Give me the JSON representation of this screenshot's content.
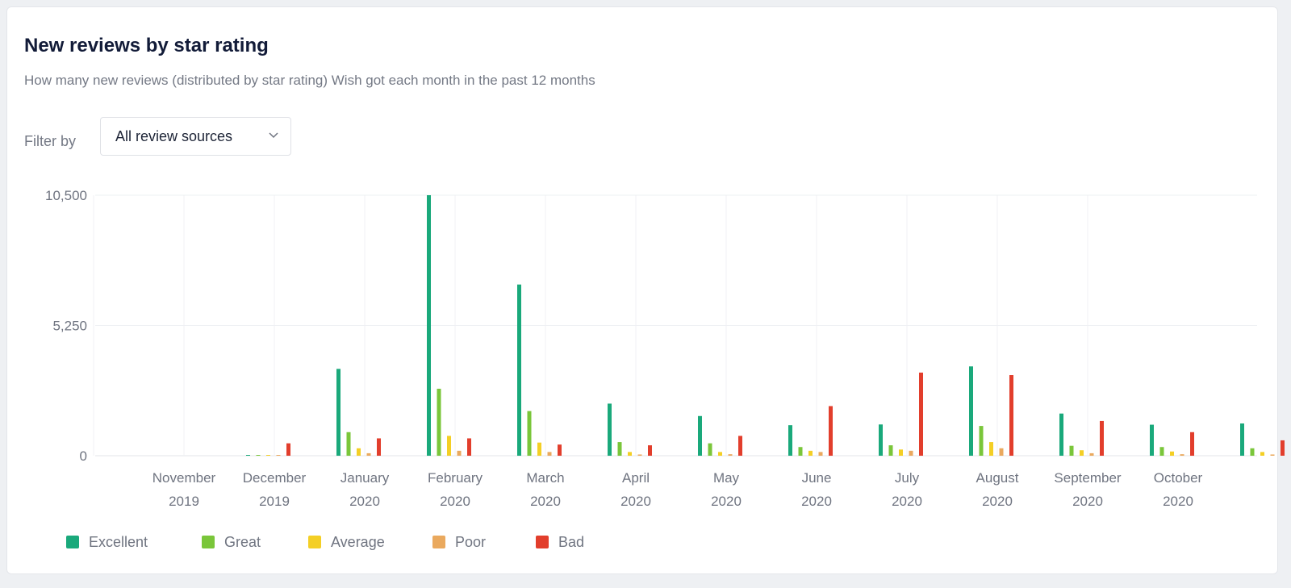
{
  "header": {
    "title": "New reviews by star rating",
    "subtitle": "How many new reviews (distributed by star rating) Wish got each month in the past 12 months"
  },
  "filter": {
    "label": "Filter by",
    "value": "All review sources",
    "chevron_icon": "chevron-down-icon"
  },
  "chart_data": {
    "type": "bar",
    "categories": [
      [
        "November",
        "2019"
      ],
      [
        "December",
        "2019"
      ],
      [
        "January",
        "2020"
      ],
      [
        "February",
        "2020"
      ],
      [
        "March",
        "2020"
      ],
      [
        "April",
        "2020"
      ],
      [
        "May",
        "2020"
      ],
      [
        "June",
        "2020"
      ],
      [
        "July",
        "2020"
      ],
      [
        "August",
        "2020"
      ],
      [
        "September",
        "2020"
      ],
      [
        "October",
        "2020"
      ]
    ],
    "yticks": [
      {
        "value": 0,
        "label": "0"
      },
      {
        "value": 5250,
        "label": "5,250"
      },
      {
        "value": 10500,
        "label": "10,500"
      }
    ],
    "ylim": [
      0,
      10500
    ],
    "grid": true,
    "legend_position": "bottom-left",
    "series": [
      {
        "name": "Excellent",
        "color": "#1aa97b",
        "values": [
          30,
          3500,
          10500,
          6900,
          2100,
          1600,
          1230,
          1260,
          3600,
          1700,
          1250,
          1300
        ]
      },
      {
        "name": "Great",
        "color": "#7ac63a",
        "values": [
          20,
          950,
          2700,
          1800,
          550,
          500,
          350,
          420,
          1200,
          400,
          350,
          300
        ]
      },
      {
        "name": "Average",
        "color": "#f4cf25",
        "values": [
          10,
          300,
          800,
          530,
          150,
          150,
          200,
          250,
          550,
          220,
          170,
          150
        ]
      },
      {
        "name": "Poor",
        "color": "#eaa95e",
        "values": [
          10,
          100,
          200,
          150,
          50,
          60,
          150,
          200,
          300,
          100,
          60,
          50
        ]
      },
      {
        "name": "Bad",
        "color": "#e23e2c",
        "values": [
          500,
          700,
          700,
          450,
          420,
          800,
          2000,
          3350,
          3250,
          1400,
          950,
          620
        ]
      }
    ]
  }
}
